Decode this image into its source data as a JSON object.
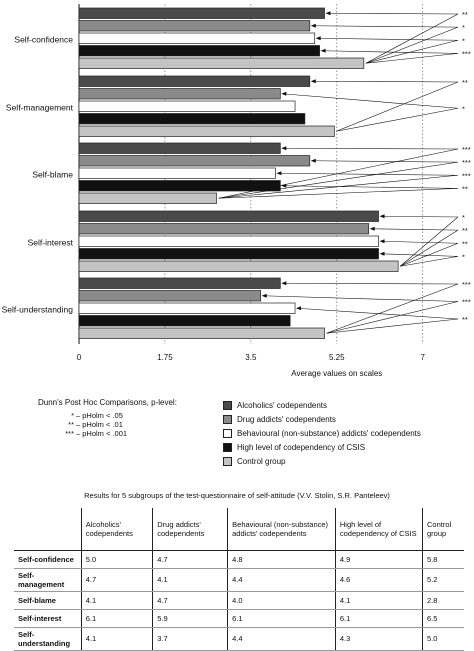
{
  "chart_data": {
    "type": "bar",
    "orientation": "horizontal",
    "categories": [
      "Self-confidence",
      "Self-management",
      "Self-blame",
      "Self-interest",
      "Self-understanding"
    ],
    "series": [
      {
        "name": "Alcoholics' codependents",
        "values": [
          5.0,
          4.7,
          4.1,
          6.1,
          4.1
        ],
        "color": "#4a4a4a"
      },
      {
        "name": "Drug addicts' codependents",
        "values": [
          4.7,
          4.1,
          4.7,
          5.9,
          3.7
        ],
        "color": "#8a8a8a"
      },
      {
        "name": "Behavioural (non-substance) addicts' codependents",
        "values": [
          4.8,
          4.4,
          4.0,
          6.1,
          4.4
        ],
        "color": "#ffffff"
      },
      {
        "name": "High level of codependency of CSIS",
        "values": [
          4.9,
          4.6,
          4.1,
          6.1,
          4.3
        ],
        "color": "#111111"
      },
      {
        "name": "Control group",
        "values": [
          5.8,
          5.2,
          2.8,
          6.5,
          5.0
        ],
        "color": "#c4c4c4"
      }
    ],
    "xlim": [
      0,
      7.8
    ],
    "xticks": [
      "0",
      "1.75",
      "3.5",
      "5.25",
      "7"
    ],
    "xtick_values": [
      0,
      1.75,
      3.5,
      5.25,
      7
    ],
    "xlabel": "Average values on scales",
    "grid": "vertical dotted",
    "annotations": [
      [
        "**",
        "*",
        "*",
        "***"
      ],
      [
        "**",
        "*"
      ],
      [
        "***",
        "***",
        "***",
        "**"
      ],
      [
        "*",
        "**",
        "**",
        "*"
      ],
      [
        "***",
        "***",
        "**"
      ]
    ]
  },
  "legend": {
    "dunn_title": "Dunn's Post Hoc Comparisons, p-level:",
    "dunn_rows": [
      {
        "sym": "*",
        "text": "– pHolm < .05"
      },
      {
        "sym": "**",
        "text": "– pHolm < .01"
      },
      {
        "sym": "***",
        "text": "– pHolm < .001"
      }
    ]
  },
  "table": {
    "title": "Results for 5 subgroups of the test-questionnaire of self-attitude (V.V. Stolin, S.R. Panteleev)",
    "headers": [
      "Alcoholics' codependents",
      "Drug addicts' codependents",
      "Behavioural (non-substance) addicts' codependents",
      "High level of codependency of CSIS",
      "Control group"
    ],
    "rows": [
      {
        "label": "Self-confidence",
        "values": [
          "5.0",
          "4.7",
          "4.8",
          "4.9",
          "5.8"
        ]
      },
      {
        "label": "Self-management",
        "values": [
          "4.7",
          "4.1",
          "4.4",
          "4.6",
          "5.2"
        ]
      },
      {
        "label": "Self-blame",
        "values": [
          "4.1",
          "4.7",
          "4.0",
          "4.1",
          "2.8"
        ]
      },
      {
        "label": "Self-interest",
        "values": [
          "6.1",
          "5.9",
          "6.1",
          "6.1",
          "6.5"
        ]
      },
      {
        "label": "Self-understanding",
        "values": [
          "4.1",
          "3.7",
          "4.4",
          "4.3",
          "5.0"
        ]
      }
    ]
  }
}
